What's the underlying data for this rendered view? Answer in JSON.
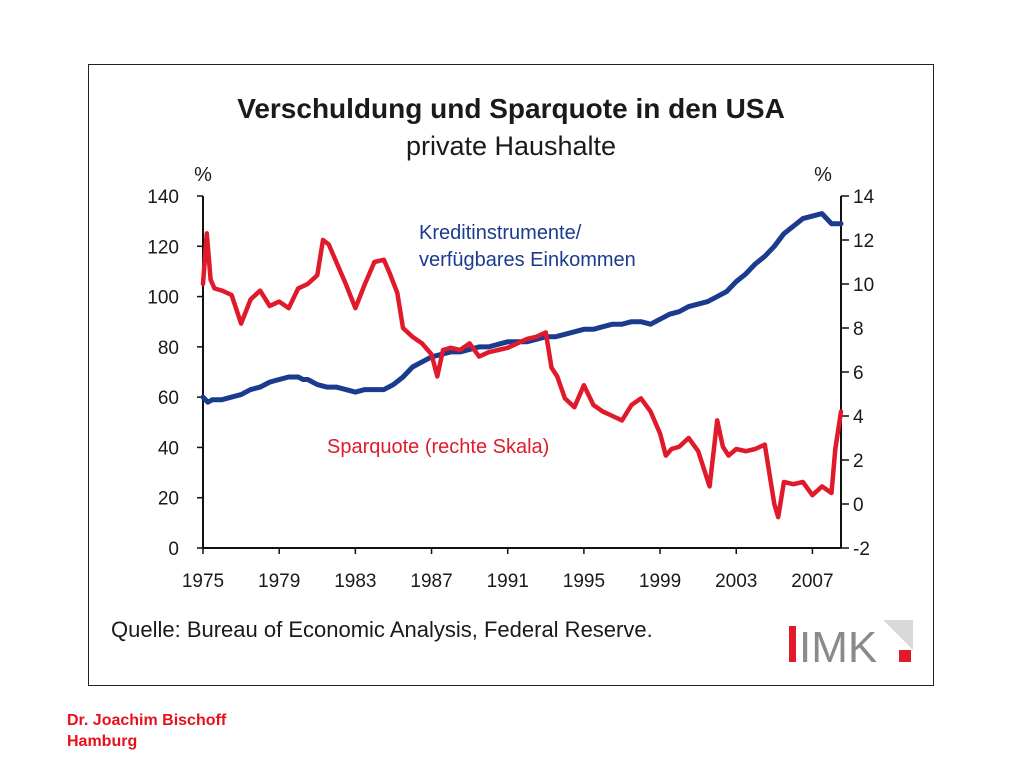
{
  "chart_data": {
    "type": "line",
    "title": "Verschuldung und Sparquote in den USA",
    "subtitle": "private Haushalte",
    "y_left_label": "%",
    "y_right_label": "%",
    "y_left_ticks": [
      "0",
      "20",
      "40",
      "60",
      "80",
      "100",
      "120",
      "140"
    ],
    "y_right_ticks": [
      "-2",
      "0",
      "2",
      "4",
      "6",
      "8",
      "10",
      "12",
      "14"
    ],
    "y_left_range": [
      0,
      140
    ],
    "y_right_range": [
      -2,
      14
    ],
    "x_range": [
      1975,
      2008.5
    ],
    "x_ticks": [
      "1975",
      "1979",
      "1983",
      "1987",
      "1991",
      "1995",
      "1999",
      "2003",
      "2007"
    ],
    "series": [
      {
        "name": "Kreditinstrumente/ verfügbares Einkommen",
        "label_lines": [
          "Kreditinstrumente/",
          "verfügbares Einkommen"
        ],
        "axis": "left",
        "color": "#1b3b8f",
        "x": [
          1975.0,
          1975.25,
          1975.5,
          1975.75,
          1976.0,
          1976.5,
          1977.0,
          1977.5,
          1978.0,
          1978.5,
          1979.0,
          1979.5,
          1980.0,
          1980.25,
          1980.5,
          1981.0,
          1981.5,
          1982.0,
          1982.5,
          1983.0,
          1983.5,
          1984.0,
          1984.5,
          1985.0,
          1985.5,
          1986.0,
          1986.5,
          1987.0,
          1987.5,
          1988.0,
          1988.5,
          1989.0,
          1989.5,
          1990.0,
          1990.5,
          1991.0,
          1991.5,
          1992.0,
          1992.5,
          1993.0,
          1993.5,
          1994.0,
          1994.5,
          1995.0,
          1995.5,
          1996.0,
          1996.5,
          1997.0,
          1997.5,
          1998.0,
          1998.5,
          1999.0,
          1999.5,
          2000.0,
          2000.5,
          2001.0,
          2001.5,
          2002.0,
          2002.5,
          2003.0,
          2003.5,
          2004.0,
          2004.5,
          2005.0,
          2005.5,
          2006.0,
          2006.5,
          2007.0,
          2007.5,
          2008.0,
          2008.5
        ],
        "y": [
          60,
          58,
          59,
          59,
          59,
          60,
          61,
          63,
          64,
          66,
          67,
          68,
          68,
          67,
          67,
          65,
          64,
          64,
          63,
          62,
          63,
          63,
          63,
          65,
          68,
          72,
          74,
          76,
          77,
          78,
          78,
          79,
          80,
          80,
          81,
          82,
          82,
          82,
          83,
          84,
          84,
          85,
          86,
          87,
          87,
          88,
          89,
          89,
          90,
          90,
          89,
          91,
          93,
          94,
          96,
          97,
          98,
          100,
          102,
          106,
          109,
          113,
          116,
          120,
          125,
          128,
          131,
          132,
          133,
          129,
          129
        ]
      },
      {
        "name": "Sparquote (rechte Skala)",
        "axis": "right",
        "color": "#e01a2b",
        "x": [
          1975.0,
          1975.2,
          1975.4,
          1975.6,
          1976.0,
          1976.5,
          1977.0,
          1977.5,
          1978.0,
          1978.5,
          1979.0,
          1979.5,
          1980.0,
          1980.5,
          1981.0,
          1981.3,
          1981.6,
          1982.0,
          1982.5,
          1983.0,
          1983.5,
          1984.0,
          1984.5,
          1984.8,
          1985.2,
          1985.5,
          1986.0,
          1986.5,
          1987.0,
          1987.3,
          1987.6,
          1988.0,
          1988.5,
          1989.0,
          1989.5,
          1990.0,
          1990.5,
          1991.0,
          1991.5,
          1992.0,
          1992.5,
          1993.0,
          1993.3,
          1993.6,
          1994.0,
          1994.5,
          1995.0,
          1995.5,
          1996.0,
          1996.5,
          1997.0,
          1997.5,
          1998.0,
          1998.5,
          1999.0,
          1999.3,
          1999.6,
          2000.0,
          2000.5,
          2001.0,
          2001.3,
          2001.6,
          2002.0,
          2002.3,
          2002.6,
          2003.0,
          2003.5,
          2004.0,
          2004.5,
          2005.0,
          2005.2,
          2005.5,
          2006.0,
          2006.5,
          2007.0,
          2007.5,
          2008.0,
          2008.2,
          2008.5
        ],
        "y": [
          10.0,
          12.3,
          10.2,
          9.8,
          9.7,
          9.5,
          8.2,
          9.3,
          9.7,
          9.0,
          9.2,
          8.9,
          9.8,
          10.0,
          10.4,
          12.0,
          11.8,
          11.0,
          10.0,
          8.9,
          10.0,
          11.0,
          11.1,
          10.5,
          9.6,
          8.0,
          7.6,
          7.3,
          6.8,
          5.8,
          7.0,
          7.1,
          7.0,
          7.3,
          6.7,
          6.9,
          7.0,
          7.1,
          7.3,
          7.5,
          7.6,
          7.8,
          6.2,
          5.8,
          4.8,
          4.4,
          5.4,
          4.5,
          4.2,
          4.0,
          3.8,
          4.5,
          4.8,
          4.2,
          3.2,
          2.2,
          2.5,
          2.6,
          3.0,
          2.4,
          1.6,
          0.8,
          3.8,
          2.6,
          2.2,
          2.5,
          2.4,
          2.5,
          2.7,
          0.0,
          -0.6,
          1.0,
          0.9,
          1.0,
          0.4,
          0.8,
          0.5,
          2.5,
          4.2
        ]
      }
    ],
    "legend": "inline-labels",
    "grid": false
  },
  "source_text": "Quelle: Bureau of Economic Analysis, Federal Reserve.",
  "logo": {
    "text": "IMK",
    "accent": "#e01a2b"
  },
  "footer": {
    "line1": "Dr. Joachim Bischoff",
    "line2": "Hamburg"
  }
}
